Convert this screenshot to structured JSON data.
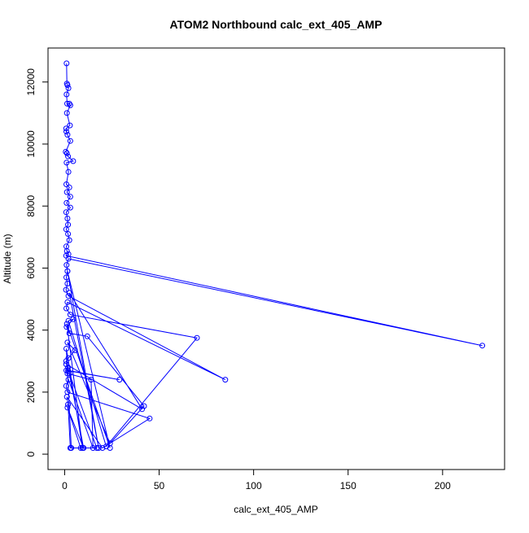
{
  "chart_data": {
    "type": "line",
    "title": "ATOM2 Northbound calc_ext_405_AMP",
    "xlabel": "calc_ext_405_AMP",
    "ylabel": "Altitude (m)",
    "xlim": [
      0,
      225
    ],
    "ylim": [
      0,
      12600
    ],
    "x_ticks": [
      0,
      50,
      100,
      150,
      200
    ],
    "y_ticks": [
      0,
      2000,
      4000,
      6000,
      8000,
      10000,
      12000
    ],
    "x_tick_labels": [
      "0",
      "50",
      "100",
      "150",
      "200"
    ],
    "y_tick_labels": [
      "0",
      "2000",
      "4000",
      "6000",
      "8000",
      "10000",
      "12000"
    ],
    "grid": false,
    "legend": "none",
    "series_color": "#0000ff",
    "marker": "open-circle",
    "series": [
      {
        "points": [
          [
            1.0,
            12600
          ],
          [
            1.2,
            11950
          ],
          [
            1.5,
            11900
          ],
          [
            2.0,
            11800
          ],
          [
            1.0,
            11600
          ],
          [
            1.3,
            11300
          ],
          [
            2.5,
            11300
          ],
          [
            3.0,
            11250
          ],
          [
            1.2,
            11000
          ],
          [
            2.8,
            10600
          ],
          [
            0.8,
            10500
          ],
          [
            0.9,
            10400
          ],
          [
            1.5,
            10300
          ],
          [
            3.0,
            10100
          ],
          [
            0.6,
            9750
          ],
          [
            1.2,
            9700
          ],
          [
            1.8,
            9600
          ],
          [
            4.5,
            9450
          ],
          [
            1.0,
            9400
          ],
          [
            2.0,
            9100
          ],
          [
            0.9,
            8700
          ],
          [
            2.5,
            8600
          ],
          [
            1.2,
            8450
          ],
          [
            3.0,
            8300
          ],
          [
            1.0,
            8100
          ],
          [
            3.0,
            7950
          ],
          [
            0.8,
            7800
          ],
          [
            1.5,
            7600
          ],
          [
            1.8,
            7400
          ],
          [
            0.8,
            7250
          ],
          [
            1.8,
            7100
          ],
          [
            2.5,
            6900
          ],
          [
            0.9,
            6700
          ],
          [
            1.2,
            6550
          ],
          [
            2.0,
            6450
          ],
          [
            0.8,
            6400
          ],
          [
            221,
            3500
          ],
          [
            2.0,
            6300
          ],
          [
            1.0,
            6100
          ],
          [
            1.5,
            5900
          ],
          [
            0.9,
            5700
          ],
          [
            1.5,
            5500
          ],
          [
            0.7,
            5300
          ],
          [
            2.0,
            5100
          ],
          [
            85,
            2400
          ],
          [
            1.5,
            4900
          ],
          [
            0.9,
            4700
          ],
          [
            3.0,
            4500
          ],
          [
            70,
            3750
          ],
          [
            22,
            250
          ],
          [
            2.0,
            4300
          ],
          [
            4.5,
            4350
          ],
          [
            1.0,
            4100
          ],
          [
            2.5,
            3900
          ],
          [
            12,
            3800
          ],
          [
            42,
            1550
          ],
          [
            24,
            350
          ],
          [
            1.5,
            3600
          ],
          [
            5.5,
            3350
          ],
          [
            2.0,
            3100
          ],
          [
            0.8,
            3000
          ],
          [
            1.8,
            2800
          ],
          [
            0.9,
            2700
          ],
          [
            29,
            2400
          ],
          [
            1.8,
            2700
          ],
          [
            1.5,
            2600
          ],
          [
            14,
            2400
          ],
          [
            15,
            200
          ],
          [
            2.0,
            2400
          ],
          [
            0.8,
            2200
          ],
          [
            1.5,
            2000
          ],
          [
            45,
            1150
          ],
          [
            20,
            200
          ],
          [
            1.2,
            1850
          ],
          [
            1.8,
            1600
          ],
          [
            3.0,
            200
          ],
          [
            8.5,
            200
          ],
          [
            1.5,
            1500
          ],
          [
            10,
            200
          ],
          [
            2.5,
            2600
          ],
          [
            17,
            200
          ],
          [
            3.5,
            200
          ],
          [
            0.9,
            3400
          ],
          [
            9.5,
            200
          ],
          [
            1.2,
            4200
          ],
          [
            24,
            200
          ],
          [
            1.5,
            5900
          ],
          [
            18,
            200
          ],
          [
            2.5,
            5200
          ],
          [
            41,
            1450
          ],
          [
            0.8,
            2900
          ]
        ]
      }
    ]
  }
}
